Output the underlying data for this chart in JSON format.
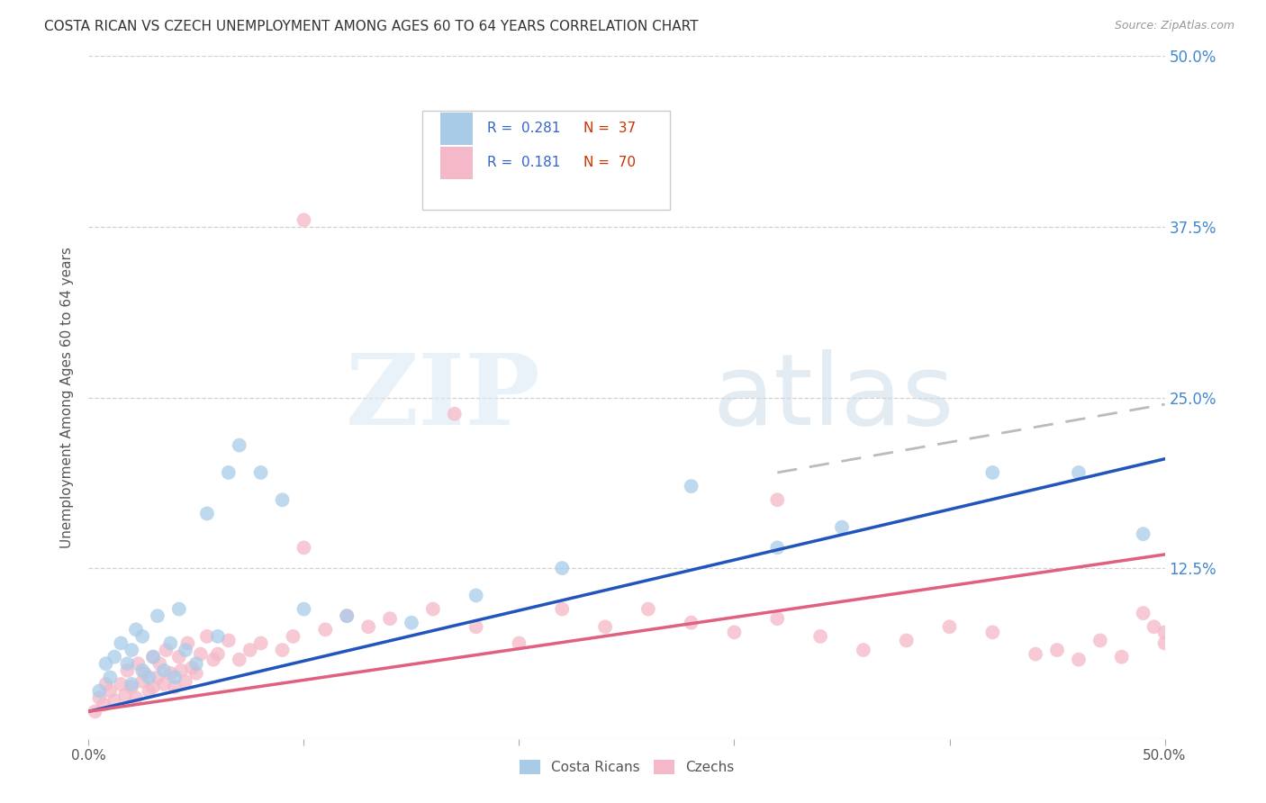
{
  "title": "COSTA RICAN VS CZECH UNEMPLOYMENT AMONG AGES 60 TO 64 YEARS CORRELATION CHART",
  "source": "Source: ZipAtlas.com",
  "ylabel": "Unemployment Among Ages 60 to 64 years",
  "xlim": [
    0,
    0.5
  ],
  "ylim": [
    0,
    0.5
  ],
  "xticks": [
    0.0,
    0.1,
    0.2,
    0.3,
    0.4,
    0.5
  ],
  "xticklabels_ends": [
    "0.0%",
    "50.0%"
  ],
  "yticks": [
    0.0,
    0.125,
    0.25,
    0.375,
    0.5
  ],
  "right_yticklabels": [
    "",
    "12.5%",
    "25.0%",
    "37.5%",
    "50.0%"
  ],
  "legend_r1": "0.281",
  "legend_n1": "37",
  "legend_r2": "0.181",
  "legend_n2": "70",
  "legend_label1": "Costa Ricans",
  "legend_label2": "Czechs",
  "blue_color": "#a8cce8",
  "pink_color": "#f5b8c8",
  "blue_line_color": "#2255bb",
  "pink_line_color": "#e06080",
  "dashed_line_color": "#bbbbbb",
  "background_color": "#ffffff",
  "blue_line_x": [
    0.0,
    0.5
  ],
  "blue_line_y": [
    0.02,
    0.205
  ],
  "pink_line_x": [
    0.0,
    0.5
  ],
  "pink_line_y": [
    0.02,
    0.135
  ],
  "dashed_line_x": [
    0.32,
    0.5
  ],
  "dashed_line_y": [
    0.195,
    0.245
  ],
  "cr_x": [
    0.005,
    0.008,
    0.01,
    0.012,
    0.015,
    0.018,
    0.02,
    0.02,
    0.022,
    0.025,
    0.025,
    0.028,
    0.03,
    0.032,
    0.035,
    0.038,
    0.04,
    0.042,
    0.045,
    0.05,
    0.055,
    0.06,
    0.065,
    0.07,
    0.08,
    0.09,
    0.1,
    0.12,
    0.15,
    0.18,
    0.22,
    0.28,
    0.32,
    0.35,
    0.42,
    0.46,
    0.49
  ],
  "cr_y": [
    0.035,
    0.055,
    0.045,
    0.06,
    0.07,
    0.055,
    0.04,
    0.065,
    0.08,
    0.05,
    0.075,
    0.045,
    0.06,
    0.09,
    0.05,
    0.07,
    0.045,
    0.095,
    0.065,
    0.055,
    0.165,
    0.075,
    0.195,
    0.215,
    0.195,
    0.175,
    0.095,
    0.09,
    0.085,
    0.105,
    0.125,
    0.185,
    0.14,
    0.155,
    0.195,
    0.195,
    0.15
  ],
  "cz_x": [
    0.003,
    0.005,
    0.007,
    0.008,
    0.01,
    0.012,
    0.015,
    0.017,
    0.018,
    0.02,
    0.022,
    0.023,
    0.025,
    0.026,
    0.028,
    0.03,
    0.03,
    0.032,
    0.033,
    0.035,
    0.036,
    0.038,
    0.04,
    0.042,
    0.043,
    0.045,
    0.046,
    0.048,
    0.05,
    0.052,
    0.055,
    0.058,
    0.06,
    0.065,
    0.07,
    0.075,
    0.08,
    0.09,
    0.095,
    0.1,
    0.11,
    0.12,
    0.13,
    0.14,
    0.16,
    0.17,
    0.18,
    0.2,
    0.22,
    0.24,
    0.26,
    0.28,
    0.3,
    0.32,
    0.34,
    0.36,
    0.38,
    0.4,
    0.42,
    0.44,
    0.45,
    0.46,
    0.47,
    0.48,
    0.49,
    0.495,
    0.5,
    0.5,
    0.32,
    0.1
  ],
  "cz_y": [
    0.02,
    0.03,
    0.025,
    0.04,
    0.035,
    0.028,
    0.04,
    0.032,
    0.05,
    0.038,
    0.03,
    0.055,
    0.042,
    0.048,
    0.035,
    0.038,
    0.06,
    0.045,
    0.055,
    0.04,
    0.065,
    0.048,
    0.038,
    0.06,
    0.05,
    0.042,
    0.07,
    0.052,
    0.048,
    0.062,
    0.075,
    0.058,
    0.062,
    0.072,
    0.058,
    0.065,
    0.07,
    0.065,
    0.075,
    0.14,
    0.08,
    0.09,
    0.082,
    0.088,
    0.095,
    0.238,
    0.082,
    0.07,
    0.095,
    0.082,
    0.095,
    0.085,
    0.078,
    0.088,
    0.075,
    0.065,
    0.072,
    0.082,
    0.078,
    0.062,
    0.065,
    0.058,
    0.072,
    0.06,
    0.092,
    0.082,
    0.078,
    0.07,
    0.175,
    0.38
  ]
}
